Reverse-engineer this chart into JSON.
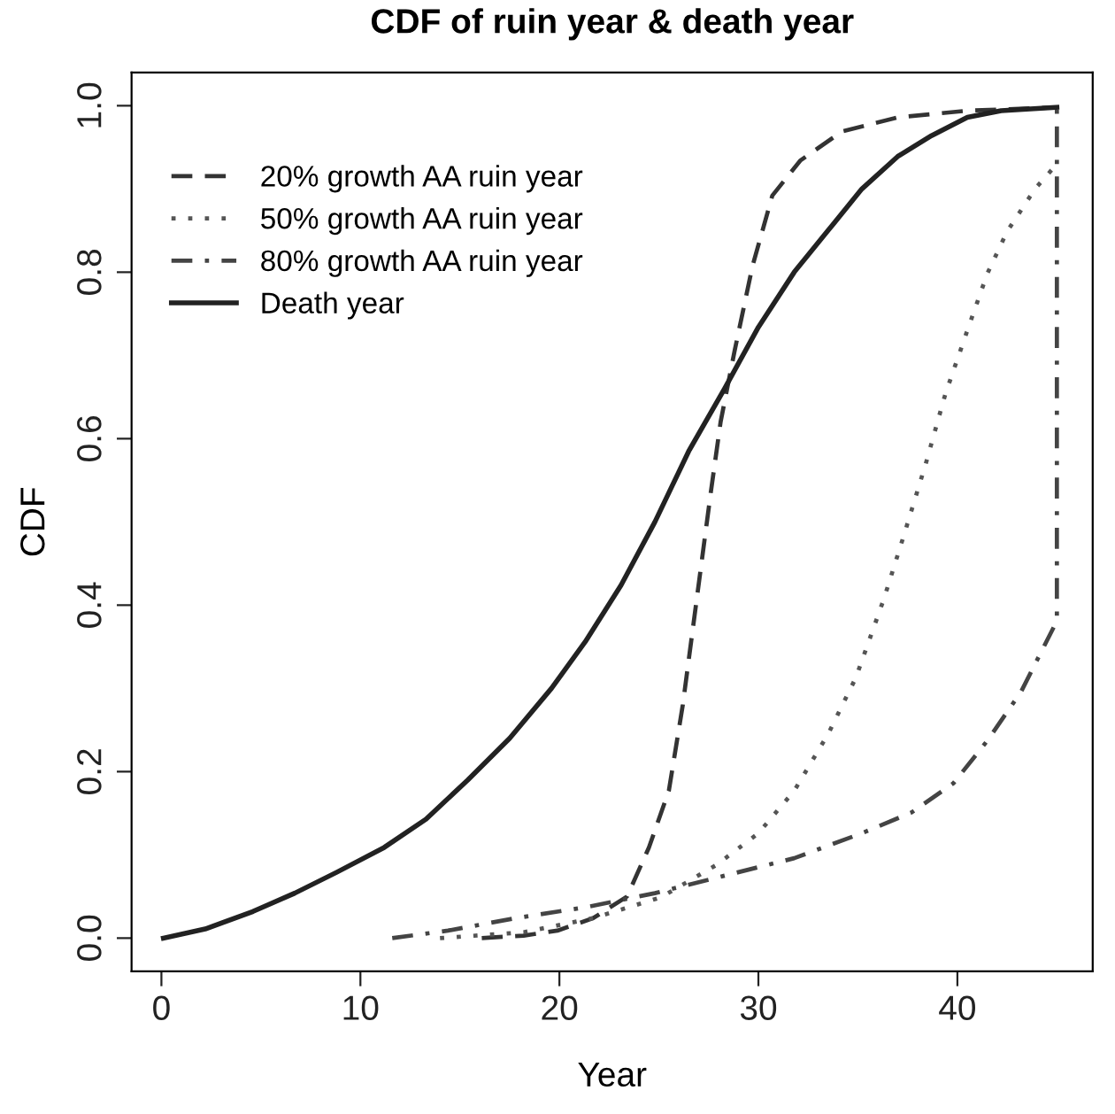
{
  "chart_data": {
    "type": "line",
    "title": "CDF of ruin year & death year",
    "xlabel": "Year",
    "ylabel": "CDF",
    "xlim": [
      -1.5,
      46.8
    ],
    "ylim": [
      -0.04,
      1.04
    ],
    "xticks": [
      0,
      10,
      20,
      30,
      40
    ],
    "yticks": [
      {
        "value": 0,
        "label": "0.0"
      },
      0.2,
      0.4,
      0.6,
      0.8,
      {
        "value": 1,
        "label": "1.0"
      }
    ],
    "grid": false,
    "legend": "top left",
    "marker": "none",
    "series": [
      {
        "name": "20% growth AA ruin year",
        "color": "#333333",
        "line_style": "dashed",
        "x": [
          16.1,
          18.2,
          19.9,
          21.7,
          23.4,
          24.5,
          25.5,
          26.2,
          26.9,
          27.6,
          28.1,
          28.8,
          29.7,
          30.7,
          32.1,
          34.2,
          37.0,
          40.5,
          45.0
        ],
        "values": [
          0,
          0.003,
          0.009,
          0.024,
          0.05,
          0.109,
          0.177,
          0.28,
          0.407,
          0.534,
          0.62,
          0.705,
          0.807,
          0.892,
          0.934,
          0.969,
          0.986,
          0.994,
          0.998
        ]
      },
      {
        "name": "50% growth AA ruin year",
        "color": "#555555",
        "line_style": "dotted",
        "x": [
          14.0,
          18.2,
          21.7,
          25.1,
          27.9,
          30.0,
          31.8,
          33.5,
          34.9,
          36.3,
          37.3,
          38.4,
          39.4,
          40.5,
          41.5,
          42.5,
          43.9,
          45.0
        ],
        "values": [
          0,
          0.007,
          0.024,
          0.049,
          0.088,
          0.126,
          0.177,
          0.245,
          0.313,
          0.407,
          0.483,
          0.569,
          0.654,
          0.73,
          0.798,
          0.849,
          0.9,
          0.93
        ]
      },
      {
        "name": "80% growth AA ruin year",
        "color": "#444444",
        "line_style": "dashdot",
        "x": [
          11.6,
          14.4,
          17.8,
          21.3,
          24.8,
          28.3,
          31.8,
          35.2,
          37.7,
          39.8,
          41.5,
          43.2,
          45.0,
          45.0
        ],
        "values": [
          0,
          0.009,
          0.024,
          0.037,
          0.054,
          0.075,
          0.096,
          0.126,
          0.151,
          0.186,
          0.237,
          0.296,
          0.381,
          0.998
        ]
      },
      {
        "name": "Death year",
        "color": "#222222",
        "line_style": "solid",
        "x": [
          0.1,
          2.2,
          4.6,
          6.7,
          8.8,
          11.2,
          13.3,
          15.4,
          17.5,
          19.6,
          21.3,
          23.1,
          24.8,
          26.5,
          28.3,
          30.0,
          31.8,
          33.5,
          35.2,
          37.0,
          38.7,
          40.5,
          42.2,
          45.0
        ],
        "values": [
          0,
          0.011,
          0.032,
          0.054,
          0.079,
          0.109,
          0.143,
          0.19,
          0.24,
          0.3,
          0.356,
          0.424,
          0.5,
          0.585,
          0.66,
          0.734,
          0.8,
          0.85,
          0.9,
          0.939,
          0.964,
          0.986,
          0.994,
          0.998
        ]
      }
    ]
  }
}
